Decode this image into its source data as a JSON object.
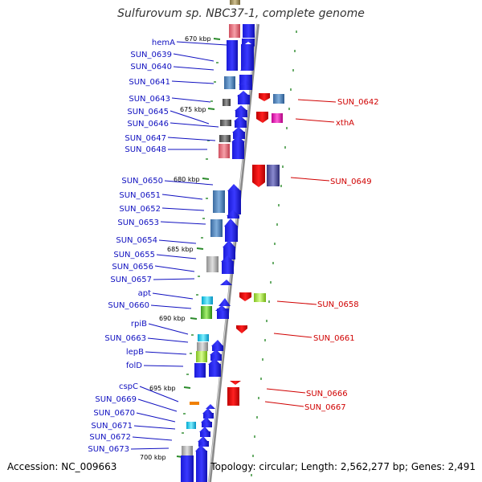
{
  "title": "Sulfurovum sp. NBC37-1, complete genome",
  "accession": "Accession: NC_009663",
  "summary": "Topology: circular; Length: 2,562,277 bp; Genes: 2,491",
  "colors": {
    "forward_arrow": "#1010ee",
    "reverse_arrow": "#e01010",
    "label_left": "#1010c0",
    "label_right": "#d00000",
    "tick": "#2a8a2a",
    "backbone": "#808080"
  },
  "kbp_marks": [
    "670 kbp",
    "675 kbp",
    "680 kbp",
    "685 kbp",
    "690 kbp",
    "695 kbp",
    "700 kbp"
  ],
  "left_genes": [
    "hemA",
    "SUN_0639",
    "SUN_0640",
    "SUN_0641",
    "SUN_0643",
    "SUN_0645",
    "SUN_0646",
    "SUN_0647",
    "SUN_0648",
    "SUN_0650",
    "SUN_0651",
    "SUN_0652",
    "SUN_0653",
    "SUN_0654",
    "SUN_0655",
    "SUN_0656",
    "SUN_0657",
    "apt",
    "SUN_0660",
    "rpiB",
    "SUN_0663",
    "lepB",
    "folD",
    "cspC",
    "SUN_0669",
    "SUN_0670",
    "SUN_0671",
    "SUN_0672",
    "SUN_0673"
  ],
  "right_genes": [
    "SUN_0642",
    "xthA",
    "SUN_0649",
    "SUN_0658",
    "SUN_0661",
    "SUN_0666",
    "SUN_0667"
  ]
}
